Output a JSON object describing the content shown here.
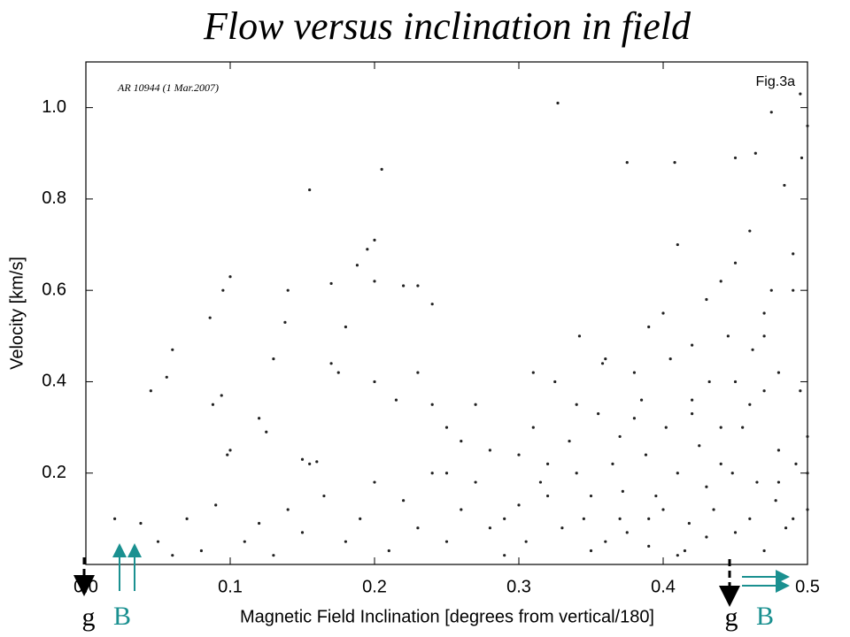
{
  "chart_data": {
    "type": "scatter",
    "title": "Flow versus inclination in field",
    "x_label": "Magnetic Field Inclination [degrees from vertical/180]",
    "y_label": "Velocity [km/s]",
    "annotations": [
      "AR 10944 (1 Mar.2007)",
      "Fig.3a",
      "g",
      "B",
      "g",
      "B"
    ],
    "xlim": [
      0,
      0.5
    ],
    "ylim": [
      0,
      1.1
    ],
    "xticks": [
      {
        "value": 0,
        "label": "0.0"
      },
      0.1,
      0.2,
      0.3,
      0.4,
      0.5
    ],
    "yticks": [
      0.2,
      0.4,
      0.6,
      0.8,
      {
        "value": 1,
        "label": "1.0"
      }
    ],
    "x": [
      0.327,
      0.475,
      0.495,
      0.5,
      0.45,
      0.408,
      0.375,
      0.464,
      0.484,
      0.496,
      0.205,
      0.155,
      0.2,
      0.195,
      0.1,
      0.095,
      0.138,
      0.086,
      0.14,
      0.17,
      0.188,
      0.2,
      0.22,
      0.23,
      0.24,
      0.18,
      0.06,
      0.056,
      0.045,
      0.088,
      0.094,
      0.1,
      0.098,
      0.12,
      0.125,
      0.15,
      0.155,
      0.16,
      0.13,
      0.17,
      0.175,
      0.2,
      0.215,
      0.23,
      0.24,
      0.25,
      0.26,
      0.28,
      0.3,
      0.02,
      0.038,
      0.05,
      0.06,
      0.07,
      0.08,
      0.09,
      0.11,
      0.12,
      0.13,
      0.14,
      0.15,
      0.165,
      0.18,
      0.19,
      0.2,
      0.21,
      0.22,
      0.23,
      0.24,
      0.25,
      0.26,
      0.27,
      0.28,
      0.29,
      0.3,
      0.31,
      0.32,
      0.33,
      0.34,
      0.35,
      0.36,
      0.37,
      0.38,
      0.39,
      0.4,
      0.41,
      0.42,
      0.43,
      0.44,
      0.45,
      0.46,
      0.47,
      0.48,
      0.49,
      0.5,
      0.305,
      0.315,
      0.325,
      0.335,
      0.345,
      0.355,
      0.365,
      0.375,
      0.385,
      0.395,
      0.405,
      0.415,
      0.425,
      0.435,
      0.445,
      0.455,
      0.465,
      0.475,
      0.485,
      0.495,
      0.342,
      0.358,
      0.372,
      0.388,
      0.402,
      0.418,
      0.432,
      0.448,
      0.462,
      0.478,
      0.492,
      0.41,
      0.43,
      0.45,
      0.47,
      0.49,
      0.44,
      0.46,
      0.48,
      0.5,
      0.42,
      0.4,
      0.38,
      0.36,
      0.34,
      0.32,
      0.31,
      0.29,
      0.27,
      0.25,
      0.35,
      0.37,
      0.39,
      0.41,
      0.43,
      0.45,
      0.47,
      0.49,
      0.44,
      0.46,
      0.48,
      0.5,
      0.42,
      0.39,
      0.47
    ],
    "series": [
      {
        "color": "#222222",
        "values": [
          1.01,
          0.99,
          1.03,
          0.96,
          0.89,
          0.88,
          0.88,
          0.9,
          0.83,
          0.89,
          0.865,
          0.82,
          0.71,
          0.69,
          0.63,
          0.6,
          0.53,
          0.54,
          0.6,
          0.615,
          0.655,
          0.62,
          0.61,
          0.61,
          0.57,
          0.52,
          0.47,
          0.41,
          0.38,
          0.35,
          0.37,
          0.25,
          0.24,
          0.32,
          0.29,
          0.23,
          0.22,
          0.225,
          0.45,
          0.44,
          0.42,
          0.4,
          0.36,
          0.42,
          0.35,
          0.3,
          0.27,
          0.25,
          0.24,
          0.1,
          0.09,
          0.05,
          0.02,
          0.1,
          0.03,
          0.13,
          0.05,
          0.09,
          0.02,
          0.12,
          0.07,
          0.15,
          0.05,
          0.1,
          0.18,
          0.03,
          0.14,
          0.08,
          0.2,
          0.05,
          0.12,
          0.18,
          0.08,
          0.02,
          0.13,
          0.3,
          0.22,
          0.08,
          0.35,
          0.15,
          0.05,
          0.28,
          0.42,
          0.1,
          0.55,
          0.2,
          0.33,
          0.06,
          0.62,
          0.4,
          0.73,
          0.5,
          0.25,
          0.68,
          0.12,
          0.05,
          0.18,
          0.4,
          0.27,
          0.1,
          0.33,
          0.22,
          0.07,
          0.36,
          0.15,
          0.45,
          0.03,
          0.26,
          0.12,
          0.5,
          0.3,
          0.18,
          0.6,
          0.08,
          0.38,
          0.5,
          0.44,
          0.16,
          0.24,
          0.3,
          0.09,
          0.4,
          0.2,
          0.47,
          0.14,
          0.22,
          0.7,
          0.58,
          0.66,
          0.55,
          0.6,
          0.3,
          0.35,
          0.42,
          0.28,
          0.48,
          0.12,
          0.32,
          0.45,
          0.2,
          0.15,
          0.42,
          0.1,
          0.35,
          0.2,
          0.03,
          0.1,
          0.04,
          0.02,
          0.17,
          0.07,
          0.03,
          0.1,
          0.22,
          0.1,
          0.18,
          0.2,
          0.36,
          0.52,
          0.38
        ]
      }
    ]
  }
}
